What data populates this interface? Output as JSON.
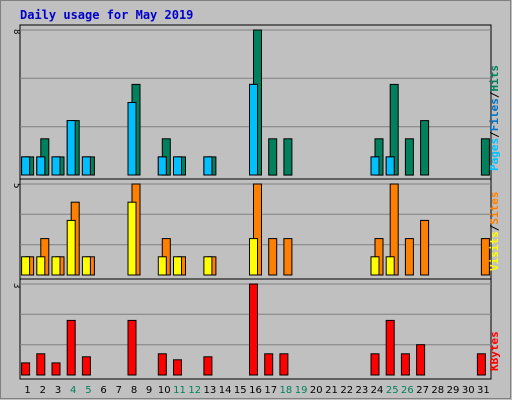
{
  "chart_data": {
    "type": "bar",
    "title": "Daily usage for May 2019",
    "x": [
      "1",
      "2",
      "3",
      "4",
      "5",
      "6",
      "7",
      "8",
      "9",
      "10",
      "11",
      "12",
      "13",
      "14",
      "15",
      "16",
      "17",
      "18",
      "19",
      "20",
      "21",
      "22",
      "23",
      "24",
      "25",
      "26",
      "27",
      "28",
      "29",
      "30",
      "31"
    ],
    "weekend_days": [
      "4",
      "5",
      "11",
      "12",
      "18",
      "19",
      "25",
      "26"
    ],
    "colors": {
      "hits": "#00805c",
      "files": "#00c0ff",
      "pages": "#00c0ff",
      "visits": "#ffff00",
      "sites": "#ff8000",
      "kbytes": "#ff0000",
      "weekday_label": "#000000",
      "weekend_label": "#00805c",
      "plot_bg": "#c0c0c0",
      "frame_bg": "#c0c0c0"
    },
    "panels": [
      {
        "id": "hits-files-pages",
        "ymax_label": "8",
        "ymax": 8,
        "series": [
          {
            "name": "Hits",
            "values": [
              1,
              2,
              1,
              3,
              1,
              0,
              0,
              5,
              0,
              2,
              1,
              0,
              1,
              0,
              0,
              8,
              2,
              2,
              0,
              0,
              0,
              0,
              0,
              2,
              5,
              2,
              3,
              0,
              0,
              0,
              2
            ]
          },
          {
            "name": "Files",
            "values": [
              1,
              1,
              1,
              3,
              1,
              0,
              0,
              4,
              0,
              1,
              1,
              0,
              1,
              0,
              0,
              5,
              0,
              0,
              0,
              0,
              0,
              0,
              0,
              1,
              1,
              0,
              0,
              0,
              0,
              0,
              0
            ]
          },
          {
            "name": "Pages",
            "values": [
              1,
              1,
              1,
              3,
              1,
              0,
              0,
              4,
              0,
              1,
              1,
              0,
              1,
              0,
              0,
              5,
              0,
              0,
              0,
              0,
              0,
              0,
              0,
              1,
              1,
              0,
              0,
              0,
              0,
              0,
              0
            ]
          }
        ],
        "legend": [
          {
            "text": "Hits",
            "color": "#00805c"
          },
          {
            "text": "Files",
            "color": "#0070c0"
          },
          {
            "text": "Pages",
            "color": "#00c0ff"
          }
        ]
      },
      {
        "id": "sites-visits",
        "ymax_label": "5",
        "ymax": 5,
        "series": [
          {
            "name": "Sites",
            "values": [
              1,
              2,
              1,
              4,
              1,
              0,
              0,
              5,
              0,
              2,
              1,
              0,
              1,
              0,
              0,
              5,
              2,
              2,
              0,
              0,
              0,
              0,
              0,
              2,
              5,
              2,
              3,
              0,
              0,
              0,
              2
            ]
          },
          {
            "name": "Visits",
            "values": [
              1,
              1,
              1,
              3,
              1,
              0,
              0,
              4,
              0,
              1,
              1,
              0,
              1,
              0,
              0,
              2,
              0,
              0,
              0,
              0,
              0,
              0,
              0,
              1,
              1,
              0,
              0,
              0,
              0,
              0,
              0
            ]
          }
        ],
        "legend": [
          {
            "text": "Sites",
            "color": "#ff8000"
          },
          {
            "text": "Visits",
            "color": "#ffff00"
          }
        ]
      },
      {
        "id": "kbytes",
        "ymax_label": "3",
        "ymax": 3.0,
        "series": [
          {
            "name": "KBytes",
            "values": [
              0.4,
              0.7,
              0.4,
              1.8,
              0.6,
              0,
              0,
              1.8,
              0,
              0.7,
              0.5,
              0,
              0.6,
              0,
              0,
              3.0,
              0.7,
              0.7,
              0,
              0,
              0,
              0,
              0,
              0.7,
              1.8,
              0.7,
              1.0,
              0,
              0,
              0,
              0.7
            ]
          }
        ],
        "legend": [
          {
            "text": "KBytes",
            "color": "#ff0000"
          }
        ]
      }
    ]
  },
  "separator": "/"
}
